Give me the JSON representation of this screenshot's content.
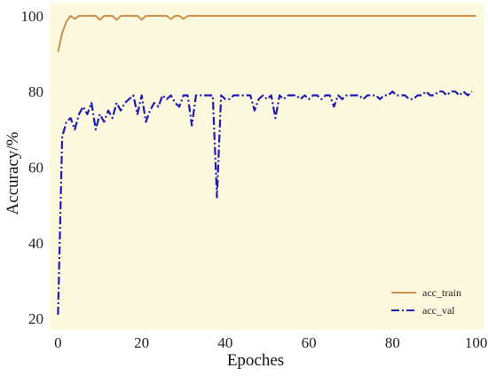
{
  "chart_data": {
    "type": "line",
    "xlabel": "Epoches",
    "ylabel": "Accuracy/%",
    "xlim": [
      -2,
      102
    ],
    "ylim": [
      17,
      103.5
    ],
    "xticks": [
      0,
      20,
      40,
      60,
      80,
      100
    ],
    "yticks": [
      20,
      40,
      60,
      80,
      100
    ],
    "grid": false,
    "background_color": "#fdf9de",
    "legend_position": "bottom-right",
    "series": [
      {
        "name": "acc_train",
        "color": "#d08e4a",
        "style": "solid",
        "x": [
          0,
          1,
          2,
          3,
          4,
          5,
          6,
          7,
          8,
          9,
          10,
          11,
          12,
          13,
          14,
          15,
          16,
          17,
          18,
          19,
          20,
          21,
          22,
          23,
          24,
          25,
          26,
          27,
          28,
          29,
          30,
          31,
          32,
          33,
          34,
          35,
          40,
          50,
          60,
          70,
          80,
          90,
          100
        ],
        "y": [
          90.5,
          95.5,
          98.5,
          100,
          99.2,
          100,
          100,
          100,
          100,
          100,
          99,
          100,
          100,
          100,
          99,
          100,
          100,
          100,
          100,
          100,
          99,
          100,
          100,
          100,
          100,
          100,
          100,
          99.2,
          100,
          100,
          99.2,
          100,
          100,
          100,
          100,
          100,
          100,
          100,
          100,
          100,
          100,
          100,
          100
        ]
      },
      {
        "name": "acc_val",
        "color": "#1c1cb4",
        "style": "dashdot",
        "x": [
          0,
          1,
          2,
          3,
          4,
          5,
          6,
          7,
          8,
          9,
          10,
          11,
          12,
          13,
          14,
          15,
          16,
          17,
          18,
          19,
          20,
          21,
          22,
          23,
          24,
          25,
          26,
          27,
          28,
          29,
          30,
          31,
          32,
          33,
          34,
          35,
          36,
          37,
          38,
          39,
          40,
          41,
          42,
          43,
          44,
          45,
          46,
          47,
          48,
          49,
          50,
          51,
          52,
          53,
          54,
          55,
          56,
          57,
          58,
          59,
          60,
          61,
          62,
          63,
          64,
          65,
          66,
          67,
          68,
          69,
          70,
          71,
          72,
          73,
          74,
          75,
          76,
          77,
          78,
          79,
          80,
          81,
          82,
          83,
          84,
          85,
          86,
          87,
          88,
          89,
          90,
          91,
          92,
          93,
          94,
          95,
          96,
          97,
          98,
          99
        ],
        "y": [
          21,
          68,
          72,
          73,
          70,
          74,
          76,
          74,
          77,
          70,
          74,
          72,
          75,
          73,
          77,
          75,
          77,
          78,
          79,
          74,
          79,
          72,
          75,
          77,
          76,
          79,
          78,
          79,
          77,
          76,
          79,
          79,
          71,
          79,
          79,
          79,
          79,
          79,
          52,
          79,
          78,
          78,
          79,
          79,
          79,
          79,
          79,
          75,
          78,
          79,
          78,
          79,
          73,
          79,
          78,
          79,
          79,
          79,
          78,
          79,
          78,
          79,
          79,
          78,
          79,
          79,
          76,
          79,
          78,
          79,
          79,
          79,
          79,
          78,
          79,
          79,
          79,
          78,
          79,
          79,
          80,
          79,
          79,
          79,
          78,
          78,
          79,
          79,
          80,
          79,
          79,
          80,
          80,
          79,
          80,
          80,
          79,
          80,
          79,
          80
        ]
      }
    ]
  }
}
